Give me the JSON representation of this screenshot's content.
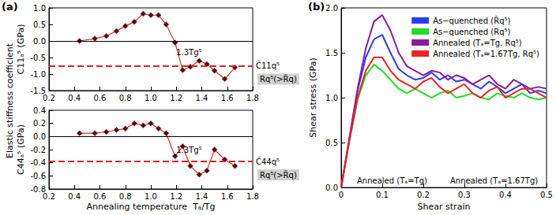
{
  "figure": {
    "panel_labels": [
      "(a)",
      "(b)"
    ],
    "ylabel": "Elastic stiffness coefficient"
  },
  "chart_data": [
    {
      "type": "line",
      "ylabel": "C11ₐ⁵ (GPa)",
      "marker": "diamond",
      "color": "#d03030",
      "grid": false,
      "x": [
        0.44,
        0.56,
        0.65,
        0.73,
        0.8,
        0.87,
        0.94,
        1.0,
        1.06,
        1.12,
        1.19,
        1.25,
        1.31,
        1.38,
        1.44,
        1.5,
        1.58,
        1.66
      ],
      "values": [
        0.0,
        0.07,
        0.15,
        0.3,
        0.45,
        0.58,
        0.82,
        0.78,
        0.78,
        0.5,
        -0.05,
        -0.88,
        -0.78,
        -0.6,
        -0.7,
        -0.9,
        -1.15,
        -0.8
      ],
      "xlim": [
        0.2,
        1.8
      ],
      "xticks": [
        0.2,
        0.4,
        0.6,
        0.8,
        {
          "value": 1,
          "label": "1.0"
        },
        1.2,
        1.4,
        1.6,
        1.8
      ],
      "ylim": [
        -1.5,
        1.0
      ],
      "yticks": [
        -1.5,
        {
          "value": -1,
          "label": "-1.0"
        },
        -0.5,
        {
          "value": 0,
          "label": "0.0"
        },
        0.5,
        {
          "value": 1,
          "label": "1.0"
        }
      ],
      "hlines": [
        {
          "value": 0,
          "color": "#000000",
          "line_style": "solid"
        },
        {
          "value": -0.75,
          "color": "#e02020",
          "line_style": "dashed",
          "label": "C̃11q⁵"
        }
      ],
      "annotations": [
        {
          "text": "1.3Tg⁵",
          "x": 1.3,
          "y": -0.35
        }
      ],
      "note": "Rq⁵(>R̃q)"
    },
    {
      "type": "line",
      "ylabel": "C44ₐ⁵ (GPa)",
      "xlabel": "Annealing temperature  Tₐ/Tg",
      "marker": "diamond",
      "color": "#d03030",
      "grid": false,
      "x": [
        0.44,
        0.56,
        0.65,
        0.73,
        0.8,
        0.87,
        0.94,
        1.0,
        1.06,
        1.12,
        1.19,
        1.25,
        1.31,
        1.38,
        1.44,
        1.5,
        1.58,
        1.66
      ],
      "values": [
        0.05,
        0.05,
        0.07,
        0.1,
        0.12,
        0.2,
        0.17,
        0.2,
        0.12,
        0.05,
        -0.3,
        -0.15,
        -0.45,
        -0.58,
        -0.52,
        -0.2,
        -0.35,
        -0.45
      ],
      "xlim": [
        0.2,
        1.8
      ],
      "xticks": [
        0.2,
        0.4,
        0.6,
        0.8,
        {
          "value": 1,
          "label": "1.0"
        },
        1.2,
        1.4,
        1.6,
        1.8
      ],
      "ylim": [
        -0.8,
        0.4
      ],
      "yticks": [
        -0.8,
        -0.6,
        -0.4,
        -0.2,
        {
          "value": 0,
          "label": "0.0"
        },
        0.2,
        0.4
      ],
      "hlines": [
        {
          "value": 0,
          "color": "#000000",
          "line_style": "solid"
        },
        {
          "value": -0.38,
          "color": "#e02020",
          "line_style": "dashed",
          "label": "C̃44q⁵"
        }
      ],
      "annotations": [
        {
          "text": "1.3Tg⁵",
          "x": 1.3,
          "y": -0.2
        }
      ],
      "note": "Rq⁵(>R̃q)"
    },
    {
      "type": "line",
      "xlabel": "Shear strain",
      "ylabel": "Shear stress (GPa)",
      "legend": "upper right",
      "grid": false,
      "x": [
        0,
        0.02,
        0.04,
        0.06,
        0.08,
        0.1,
        0.12,
        0.14,
        0.16,
        0.18,
        0.2,
        0.22,
        0.24,
        0.26,
        0.28,
        0.3,
        0.32,
        0.34,
        0.36,
        0.38,
        0.4,
        0.42,
        0.44,
        0.46,
        0.48,
        0.5
      ],
      "xlim": [
        0,
        0.5
      ],
      "xticks": [
        0,
        0.1,
        0.2,
        0.3,
        0.4,
        0.5
      ],
      "ylim": [
        0,
        2.0
      ],
      "yticks": [
        {
          "value": 0,
          "label": "0.0"
        },
        0.5,
        {
          "value": 1,
          "label": "1.0"
        },
        1.5,
        {
          "value": 2,
          "label": "2.0"
        }
      ],
      "series": [
        {
          "name": "As−quenched (R̃q⁵)",
          "color": "#2a3cf0",
          "values": [
            0,
            0.55,
            1.08,
            1.45,
            1.65,
            1.7,
            1.5,
            1.32,
            1.25,
            1.2,
            1.22,
            1.28,
            1.2,
            1.25,
            1.18,
            1.2,
            1.15,
            1.1,
            1.18,
            1.12,
            1.05,
            1.1,
            1.15,
            1.05,
            1.08,
            1.05
          ]
        },
        {
          "name": "As−quenched (Rq⁵)",
          "color": "#22dd22",
          "values": [
            0,
            0.52,
            0.98,
            1.25,
            1.37,
            1.3,
            1.2,
            1.1,
            1.05,
            1.1,
            1.05,
            1.0,
            1.05,
            1.08,
            1.0,
            1.02,
            1.05,
            1.0,
            0.98,
            1.05,
            1.02,
            1.0,
            1.05,
            1.0,
            0.98,
            1.0
          ]
        },
        {
          "name": "Annealed (Tₐ=Tg, Rq⁵)",
          "color": "#8a1a9a",
          "values": [
            0,
            0.55,
            1.1,
            1.55,
            1.85,
            1.92,
            1.75,
            1.5,
            1.35,
            1.3,
            1.25,
            1.3,
            1.28,
            1.2,
            1.25,
            1.22,
            1.15,
            1.2,
            1.25,
            1.15,
            1.1,
            1.2,
            1.15,
            1.1,
            1.12,
            1.1
          ]
        },
        {
          "name": "Annealed (Tₐ=1.67Tg, Rq⁵)",
          "color": "#ee2222",
          "values": [
            0,
            0.52,
            1.0,
            1.3,
            1.45,
            1.45,
            1.3,
            1.2,
            1.15,
            1.1,
            1.18,
            1.22,
            1.12,
            1.05,
            1.1,
            1.15,
            1.05,
            1.0,
            1.08,
            1.12,
            1.0,
            1.05,
            1.1,
            1.1,
            1.05,
            1.0
          ]
        }
      ],
      "insets": [
        "Annealed (Tₐ=Tg)",
        "Annealed (Tₐ=1.67Tg)"
      ]
    }
  ]
}
